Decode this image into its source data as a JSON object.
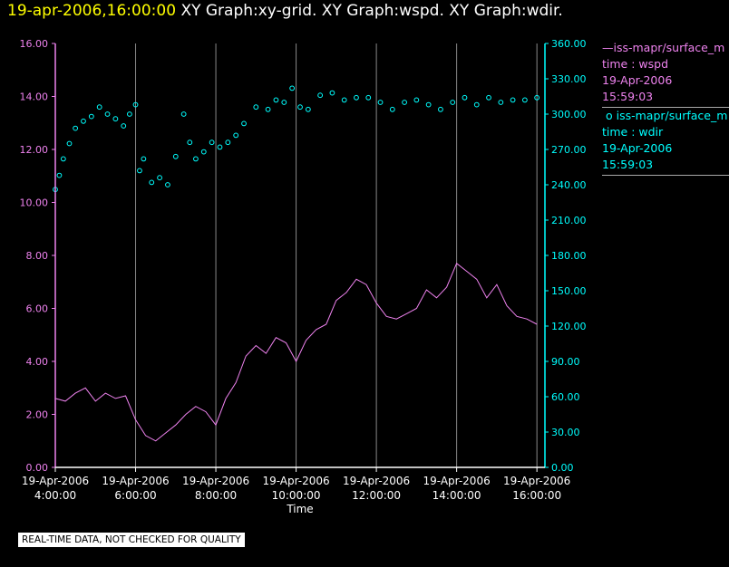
{
  "header": {
    "timestamp": "19-apr-2006,16:00:00",
    "graphs": "XY Graph:xy-grid.  XY Graph:wspd.  XY Graph:wdir."
  },
  "legend": [
    {
      "marker": "—",
      "name": "iss-mapr/surface_m",
      "var": "time : wspd",
      "date": "19-Apr-2006",
      "time": "15:59:03",
      "color": "#ee82ee"
    },
    {
      "marker": "o",
      "name": "iss-mapr/surface_m",
      "var": "time : wdir",
      "date": "19-Apr-2006",
      "time": "15:59:03",
      "color": "#00ffff"
    }
  ],
  "notice": "REAL-TIME DATA, NOT CHECKED FOR QUALITY",
  "chart_data": {
    "type": "line",
    "xlabel": "Time",
    "xlim": [
      4,
      16.2
    ],
    "x_ticks": [
      {
        "value": 4,
        "date": "19-Apr-2006",
        "time": "4:00:00"
      },
      {
        "value": 6,
        "date": "19-Apr-2006",
        "time": "6:00:00"
      },
      {
        "value": 8,
        "date": "19-Apr-2006",
        "time": "8:00:00"
      },
      {
        "value": 10,
        "date": "19-Apr-2006",
        "time": "10:00:00"
      },
      {
        "value": 12,
        "date": "19-Apr-2006",
        "time": "12:00:00"
      },
      {
        "value": 14,
        "date": "19-Apr-2006",
        "time": "14:00:00"
      },
      {
        "value": 16,
        "date": "19-Apr-2006",
        "time": "16:00:00"
      }
    ],
    "y_left": {
      "lim": [
        0,
        16
      ],
      "ticks": [
        "0.00",
        "2.00",
        "4.00",
        "6.00",
        "8.00",
        "10.00",
        "12.00",
        "14.00",
        "16.00"
      ],
      "color": "#ee82ee"
    },
    "y_right": {
      "lim": [
        0,
        360
      ],
      "ticks": [
        "0.00",
        "30.00",
        "60.00",
        "90.00",
        "120.00",
        "150.00",
        "180.00",
        "210.00",
        "240.00",
        "270.00",
        "300.00",
        "330.00",
        "360.00"
      ],
      "color": "#00ffff"
    },
    "grid": "vertical",
    "series": [
      {
        "name": "wspd",
        "axis": "left",
        "style": "line",
        "color": "#ee82ee",
        "x": [
          4.0,
          4.25,
          4.5,
          4.75,
          5.0,
          5.25,
          5.5,
          5.75,
          6.0,
          6.25,
          6.5,
          6.75,
          7.0,
          7.25,
          7.5,
          7.75,
          8.0,
          8.25,
          8.5,
          8.75,
          9.0,
          9.25,
          9.5,
          9.75,
          10.0,
          10.25,
          10.5,
          10.75,
          11.0,
          11.25,
          11.5,
          11.75,
          12.0,
          12.25,
          12.5,
          12.75,
          13.0,
          13.25,
          13.5,
          13.75,
          14.0,
          14.25,
          14.5,
          14.75,
          15.0,
          15.25,
          15.5,
          15.75,
          16.0
        ],
        "values": [
          2.6,
          2.5,
          2.8,
          3.0,
          2.5,
          2.8,
          2.6,
          2.7,
          1.8,
          1.2,
          1.0,
          1.3,
          1.6,
          2.0,
          2.3,
          2.1,
          1.6,
          2.6,
          3.2,
          4.2,
          4.6,
          4.3,
          4.9,
          4.7,
          4.0,
          4.8,
          5.2,
          5.4,
          6.3,
          6.6,
          7.1,
          6.9,
          6.2,
          5.7,
          5.6,
          5.8,
          6.0,
          6.7,
          6.4,
          6.8,
          7.7,
          7.4,
          7.1,
          6.4,
          6.9,
          6.1,
          5.7,
          5.6,
          5.4
        ]
      },
      {
        "name": "wdir",
        "axis": "right",
        "style": "markers",
        "color": "#00ffff",
        "x": [
          4.0,
          4.1,
          4.2,
          4.35,
          4.5,
          4.7,
          4.9,
          5.1,
          5.3,
          5.5,
          5.7,
          5.85,
          6.0,
          6.1,
          6.2,
          6.4,
          6.6,
          6.8,
          7.0,
          7.2,
          7.35,
          7.5,
          7.7,
          7.9,
          8.1,
          8.3,
          8.5,
          8.7,
          9.0,
          9.3,
          9.5,
          9.7,
          9.9,
          10.1,
          10.3,
          10.6,
          10.9,
          11.2,
          11.5,
          11.8,
          12.1,
          12.4,
          12.7,
          13.0,
          13.3,
          13.6,
          13.9,
          14.2,
          14.5,
          14.8,
          15.1,
          15.4,
          15.7,
          16.0
        ],
        "values": [
          236,
          248,
          262,
          275,
          288,
          294,
          298,
          306,
          300,
          296,
          290,
          300,
          308,
          252,
          262,
          242,
          246,
          240,
          264,
          300,
          276,
          262,
          268,
          276,
          272,
          276,
          282,
          292,
          306,
          304,
          312,
          310,
          322,
          306,
          304,
          316,
          318,
          312,
          314,
          314,
          310,
          304,
          310,
          312,
          308,
          304,
          310,
          314,
          308,
          314,
          310,
          312,
          312,
          314
        ]
      }
    ]
  }
}
